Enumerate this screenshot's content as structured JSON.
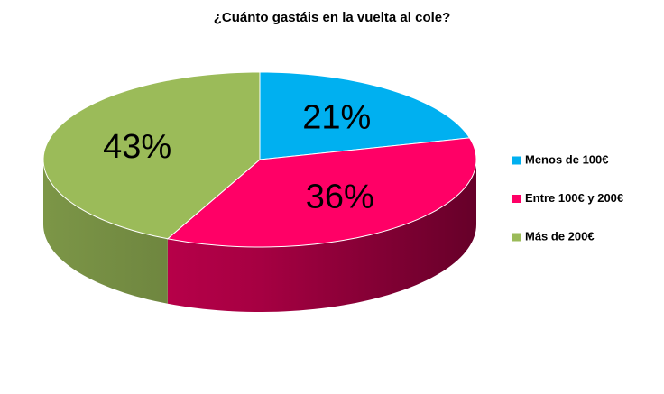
{
  "chart_data": {
    "type": "pie3d",
    "title": "¿Cuánto gastáis en la vuelta al cole?",
    "categories": [
      "Menos de 100€",
      "Entre 100€ y 200€",
      "Más de 200€"
    ],
    "values": [
      21,
      36,
      43
    ],
    "value_labels": [
      "21%",
      "36%",
      "43%"
    ],
    "colors": [
      "#00b0f0",
      "#ff0066",
      "#9bbb59"
    ],
    "legend": "right"
  }
}
